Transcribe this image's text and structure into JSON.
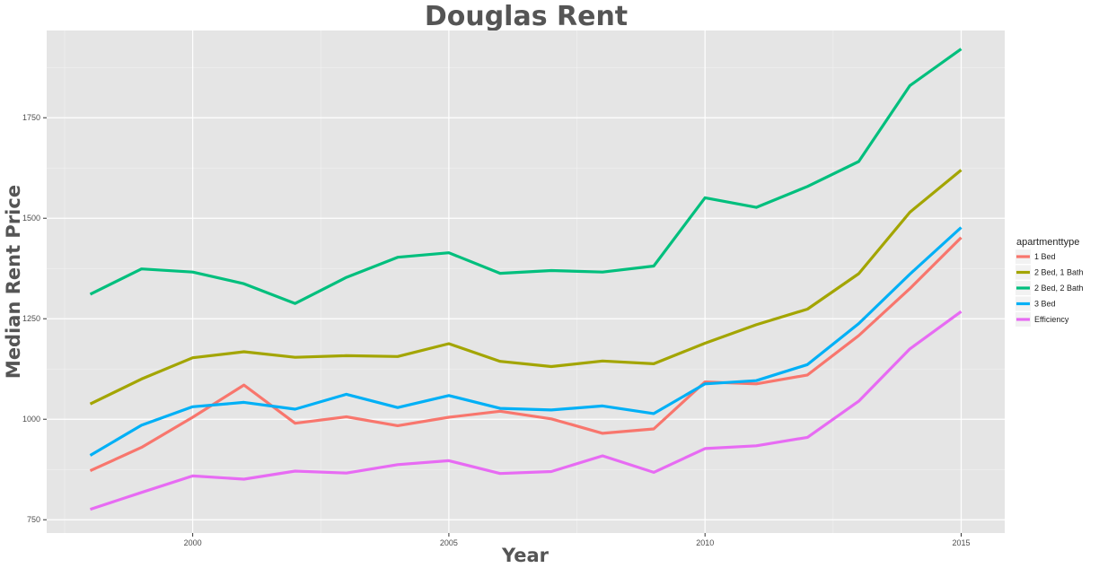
{
  "chart_data": {
    "type": "line",
    "title": "Douglas Rent",
    "xlabel": "Year",
    "ylabel": "Median Rent Price",
    "x": [
      1998,
      1999,
      2000,
      2001,
      2002,
      2003,
      2004,
      2005,
      2006,
      2007,
      2008,
      2009,
      2010,
      2011,
      2012,
      2013,
      2014,
      2015
    ],
    "xlim": [
      1997.15,
      2015.85
    ],
    "ylim": [
      717,
      1967
    ],
    "x_ticks": [
      2000,
      2005,
      2010,
      2015
    ],
    "y_ticks": [
      750,
      1000,
      1250,
      1500,
      1750
    ],
    "x_tick_labels": [
      "2000",
      "2005",
      "2010",
      "2015"
    ],
    "y_tick_labels": [
      "750",
      "1000",
      "1250",
      "1500",
      "1750"
    ],
    "grid": true,
    "legend": {
      "title": "apartmenttype",
      "position": "right"
    },
    "series": [
      {
        "name": "1 Bed",
        "color": "#F8766D",
        "values": [
          872,
          930,
          1005,
          1085,
          990,
          1006,
          984,
          1005,
          1020,
          1001,
          965,
          976,
          1093,
          1088,
          1110,
          1208,
          1325,
          1452
        ]
      },
      {
        "name": "2 Bed, 1 Bath",
        "color": "#A3A500",
        "values": [
          1038,
          1100,
          1153,
          1168,
          1154,
          1158,
          1156,
          1188,
          1144,
          1131,
          1145,
          1138,
          1189,
          1235,
          1274,
          1362,
          1515,
          1620
        ]
      },
      {
        "name": "2 Bed, 2 Bath",
        "color": "#00BF7D",
        "values": [
          1311,
          1374,
          1366,
          1337,
          1288,
          1353,
          1403,
          1414,
          1363,
          1370,
          1366,
          1381,
          1551,
          1527,
          1579,
          1641,
          1830,
          1921
        ]
      },
      {
        "name": "3 Bed",
        "color": "#00B0F6",
        "values": [
          910,
          985,
          1031,
          1042,
          1025,
          1062,
          1029,
          1059,
          1027,
          1023,
          1033,
          1014,
          1088,
          1096,
          1136,
          1238,
          1361,
          1477
        ]
      },
      {
        "name": "Efficiency",
        "color": "#E76BF3",
        "values": [
          776,
          818,
          859,
          851,
          871,
          866,
          887,
          897,
          865,
          870,
          909,
          868,
          927,
          934,
          955,
          1045,
          1175,
          1268
        ]
      }
    ]
  }
}
